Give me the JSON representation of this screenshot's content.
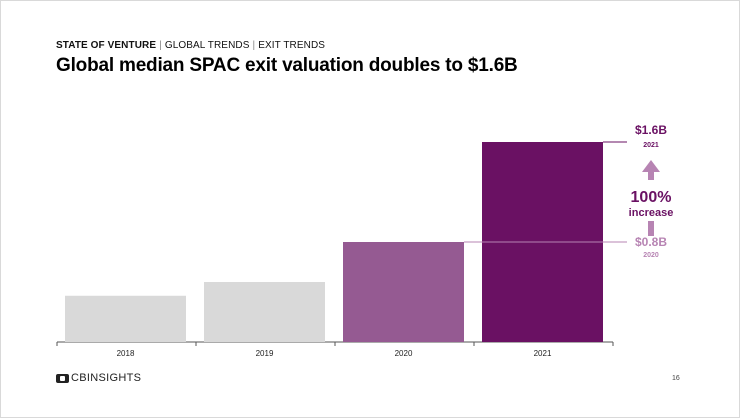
{
  "header": {
    "section": "STATE OF VENTURE",
    "sub1": "GLOBAL TRENDS",
    "sub2": "EXIT TRENDS",
    "separator": "|",
    "title": "Global median SPAC exit valuation doubles to $1.6B"
  },
  "chart_data": {
    "type": "bar",
    "categories": [
      "2018",
      "2019",
      "2020",
      "2021"
    ],
    "values": [
      0.37,
      0.48,
      0.8,
      1.6
    ],
    "unit": "$B",
    "bar_colors": [
      "#d9d9d9",
      "#d9d9d9",
      "#955a92",
      "#6a1163"
    ],
    "annotations": {
      "top_value": "$1.6B",
      "top_year": "2021",
      "mid_value": "$0.8B",
      "mid_year": "2020",
      "increase_pct": "100%",
      "increase_word": "increase"
    },
    "annotation_colors": {
      "dark": "#6a1163",
      "light": "#b784b3"
    }
  },
  "footer": {
    "logo_text": "CBINSIGHTS",
    "page_number": "16"
  }
}
